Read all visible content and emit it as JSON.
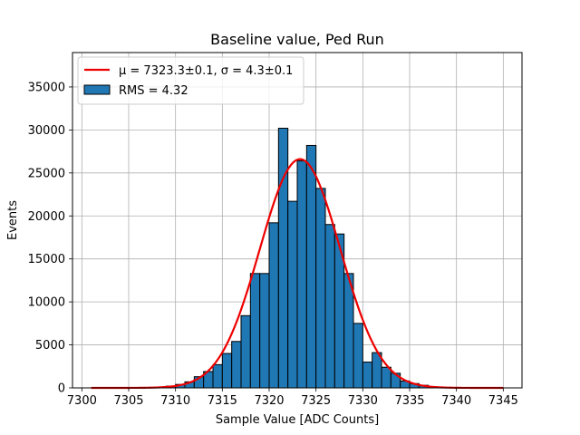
{
  "chart_data": {
    "type": "bar",
    "title": "Baseline value, Ped Run",
    "xlabel": "Sample Value [ADC Counts]",
    "ylabel": "Events",
    "xlim": [
      7299,
      7347
    ],
    "ylim": [
      0,
      39000
    ],
    "xticks": [
      7300,
      7305,
      7310,
      7315,
      7320,
      7325,
      7330,
      7335,
      7340,
      7345
    ],
    "yticks": [
      0,
      5000,
      10000,
      15000,
      20000,
      25000,
      30000,
      35000
    ],
    "grid": true,
    "legend_position": "top-left",
    "bin_width": 1,
    "bins": [
      {
        "x": 7309,
        "value": 200
      },
      {
        "x": 7310,
        "value": 400
      },
      {
        "x": 7311,
        "value": 700
      },
      {
        "x": 7312,
        "value": 1300
      },
      {
        "x": 7313,
        "value": 1900
      },
      {
        "x": 7314,
        "value": 2700
      },
      {
        "x": 7315,
        "value": 4000
      },
      {
        "x": 7316,
        "value": 5400
      },
      {
        "x": 7317,
        "value": 8400
      },
      {
        "x": 7318,
        "value": 13300
      },
      {
        "x": 7319,
        "value": 13300
      },
      {
        "x": 7320,
        "value": 19200
      },
      {
        "x": 7321,
        "value": 30200
      },
      {
        "x": 7322,
        "value": 21700
      },
      {
        "x": 7323,
        "value": 26400
      },
      {
        "x": 7324,
        "value": 28200
      },
      {
        "x": 7325,
        "value": 23200
      },
      {
        "x": 7326,
        "value": 19000
      },
      {
        "x": 7327,
        "value": 17900
      },
      {
        "x": 7328,
        "value": 13300
      },
      {
        "x": 7329,
        "value": 7500
      },
      {
        "x": 7330,
        "value": 3000
      },
      {
        "x": 7331,
        "value": 4100
      },
      {
        "x": 7332,
        "value": 2400
      },
      {
        "x": 7333,
        "value": 1700
      },
      {
        "x": 7334,
        "value": 800
      },
      {
        "x": 7335,
        "value": 500
      },
      {
        "x": 7336,
        "value": 300
      }
    ],
    "fit": {
      "type": "gaussian",
      "mu": 7323.3,
      "sigma": 4.3,
      "amplitude": 26600,
      "x_range": [
        7301,
        7345
      ]
    },
    "series": [
      {
        "name": "fit",
        "legend": "μ = 7323.3±0.1, σ = 4.3±0.1",
        "color": "#ee0000"
      },
      {
        "name": "histogram",
        "legend": "RMS = 4.32",
        "color": "#1f77b4",
        "edge_color": "#000000"
      }
    ]
  }
}
